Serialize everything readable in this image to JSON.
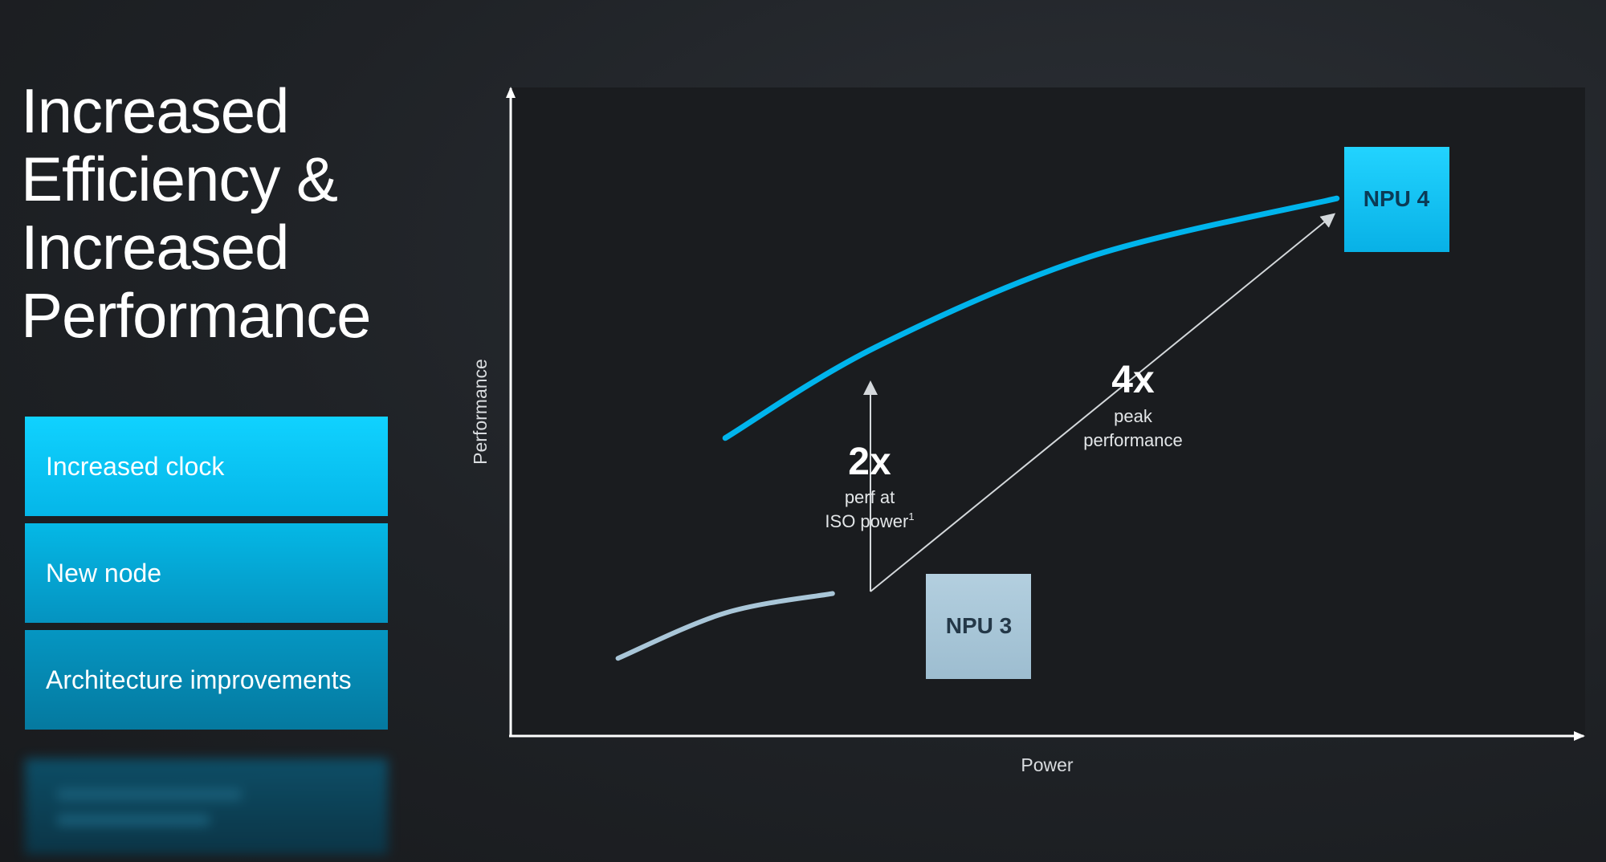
{
  "slide": {
    "title_lines": [
      "Increased",
      "Efficiency &",
      "Increased",
      "Performance"
    ],
    "features": [
      {
        "label": "Increased clock"
      },
      {
        "label": "New node"
      },
      {
        "label": "Architecture improvements"
      }
    ]
  },
  "chart_data": {
    "type": "line",
    "title": "",
    "xlabel": "Power",
    "ylabel": "Performance",
    "series": [
      {
        "name": "NPU 3",
        "color": "#a9c6d8",
        "values": [
          [
            0.1,
            0.12
          ],
          [
            0.2,
            0.19
          ],
          [
            0.3,
            0.22
          ]
        ]
      },
      {
        "name": "NPU 4",
        "color": "#00b4ec",
        "values": [
          [
            0.2,
            0.46
          ],
          [
            0.34,
            0.6
          ],
          [
            0.54,
            0.74
          ],
          [
            0.77,
            0.83
          ]
        ]
      }
    ],
    "annotations": [
      {
        "value": "2x",
        "text_lines": [
          "perf at",
          "ISO power"
        ],
        "superscript": "1"
      },
      {
        "value": "4x",
        "text_lines": [
          "peak",
          "performance"
        ]
      }
    ],
    "boxes": [
      {
        "label": "NPU 3",
        "color": "#a9c6d8"
      },
      {
        "label": "NPU 4",
        "color": "#12c4f5"
      }
    ]
  }
}
